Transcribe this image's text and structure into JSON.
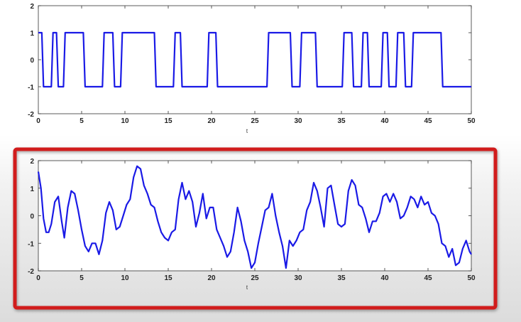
{
  "chart_data": [
    {
      "type": "line",
      "title": "",
      "xlabel": "t",
      "ylabel": "",
      "xlim": [
        0,
        50
      ],
      "ylim": [
        -2,
        2
      ],
      "xticks": [
        0,
        5,
        10,
        15,
        20,
        25,
        30,
        35,
        40,
        45,
        50
      ],
      "yticks": [
        2,
        1,
        0,
        -1,
        -2
      ],
      "grid": false,
      "series": [
        {
          "color": "#1a1ae6",
          "x": [
            0,
            0.3,
            0.4,
            0.6,
            0.8,
            1.5,
            1.7,
            2.1,
            2.3,
            2.9,
            3.1,
            5.2,
            5.4,
            7.4,
            7.6,
            8.6,
            8.8,
            9.5,
            9.7,
            13.4,
            13.6,
            15.6,
            15.8,
            16.4,
            16.6,
            19.5,
            19.7,
            20.5,
            20.7,
            26.4,
            26.6,
            29.1,
            29.3,
            30.2,
            30.4,
            32.0,
            32.2,
            35.1,
            35.3,
            36.2,
            36.4,
            37.3,
            37.5,
            38.0,
            38.2,
            39.6,
            39.8,
            40.3,
            40.5,
            41.3,
            41.5,
            42.2,
            42.4,
            43.1,
            43.3,
            46.5,
            46.7,
            50
          ],
          "y": [
            1,
            1,
            1,
            -1,
            -1,
            -1,
            1,
            1,
            -1,
            -1,
            1,
            1,
            -1,
            -1,
            1,
            1,
            -1,
            -1,
            1,
            1,
            -1,
            -1,
            1,
            1,
            -1,
            -1,
            1,
            1,
            -1,
            -1,
            1,
            1,
            -1,
            -1,
            1,
            1,
            -1,
            -1,
            1,
            1,
            -1,
            -1,
            1,
            1,
            -1,
            -1,
            1,
            1,
            -1,
            -1,
            1,
            1,
            -1,
            -1,
            1,
            1,
            -1,
            -1
          ]
        }
      ]
    },
    {
      "type": "line",
      "title": "",
      "xlabel": "t",
      "ylabel": "",
      "xlim": [
        0,
        50
      ],
      "ylim": [
        -2,
        2
      ],
      "xticks": [
        0,
        5,
        10,
        15,
        20,
        25,
        30,
        35,
        40,
        45,
        50
      ],
      "yticks": [
        2,
        1,
        0,
        -1,
        -2
      ],
      "grid": false,
      "series": [
        {
          "color": "#1a1ae6",
          "x": [
            0,
            0.3,
            0.6,
            0.9,
            1.2,
            1.5,
            1.9,
            2.3,
            2.7,
            3.0,
            3.4,
            3.8,
            4.2,
            4.6,
            5.0,
            5.4,
            5.8,
            6.2,
            6.6,
            7.0,
            7.4,
            7.8,
            8.2,
            8.6,
            9.0,
            9.4,
            9.8,
            10.2,
            10.6,
            11.0,
            11.4,
            11.8,
            12.2,
            12.6,
            13.0,
            13.4,
            13.8,
            14.2,
            14.6,
            15.0,
            15.4,
            15.8,
            16.2,
            16.6,
            17.0,
            17.4,
            17.8,
            18.2,
            18.6,
            19.0,
            19.4,
            19.8,
            20.2,
            20.6,
            21.0,
            21.4,
            21.8,
            22.2,
            22.6,
            23.0,
            23.4,
            23.8,
            24.2,
            24.6,
            25.0,
            25.4,
            25.8,
            26.2,
            26.6,
            27.0,
            27.4,
            27.8,
            28.2,
            28.6,
            29.0,
            29.4,
            29.8,
            30.2,
            30.6,
            31.0,
            31.4,
            31.8,
            32.2,
            32.6,
            33.0,
            33.4,
            33.8,
            34.2,
            34.6,
            35.0,
            35.4,
            35.8,
            36.2,
            36.6,
            37.0,
            37.4,
            37.8,
            38.2,
            38.6,
            39.0,
            39.4,
            39.8,
            40.2,
            40.6,
            41.0,
            41.4,
            41.8,
            42.2,
            42.6,
            43.0,
            43.4,
            43.8,
            44.2,
            44.6,
            45.0,
            45.4,
            45.8,
            46.2,
            46.6,
            47.0,
            47.4,
            47.8,
            48.2,
            48.6,
            49.0,
            49.4,
            49.8,
            50.0
          ],
          "y": [
            1.6,
            1.0,
            -0.1,
            -0.6,
            -0.6,
            -0.3,
            0.5,
            0.7,
            -0.2,
            -0.8,
            0.3,
            0.9,
            0.8,
            0.2,
            -0.5,
            -1.1,
            -1.3,
            -1.0,
            -1.0,
            -1.4,
            -0.9,
            0.1,
            0.5,
            0.2,
            -0.5,
            -0.4,
            0.0,
            0.4,
            0.6,
            1.4,
            1.8,
            1.7,
            1.1,
            0.8,
            0.4,
            0.3,
            -0.2,
            -0.6,
            -0.8,
            -0.9,
            -0.6,
            -0.5,
            0.6,
            1.2,
            0.6,
            0.9,
            0.5,
            -0.4,
            0.1,
            0.8,
            -0.1,
            0.3,
            0.3,
            -0.5,
            -0.8,
            -1.1,
            -1.5,
            -1.3,
            -0.6,
            0.3,
            -0.2,
            -0.9,
            -1.3,
            -1.9,
            -1.7,
            -1.0,
            -0.4,
            0.2,
            0.3,
            0.8,
            0.0,
            -0.6,
            -1.1,
            -1.9,
            -0.9,
            -1.1,
            -0.9,
            -0.6,
            -0.5,
            0.2,
            0.5,
            1.2,
            0.9,
            0.3,
            -0.4,
            1.0,
            1.1,
            0.4,
            -0.3,
            -0.4,
            -0.3,
            0.9,
            1.3,
            1.1,
            0.4,
            0.3,
            -0.1,
            -0.6,
            -0.2,
            -0.2,
            0.1,
            0.7,
            0.8,
            0.5,
            0.8,
            0.5,
            -0.1,
            0.0,
            0.3,
            0.7,
            0.6,
            0.3,
            0.7,
            0.4,
            0.5,
            0.1,
            0.0,
            -0.3,
            -1.0,
            -1.1,
            -1.5,
            -1.2,
            -1.8,
            -1.7,
            -1.2,
            -0.9,
            -1.3,
            -1.4
          ]
        }
      ]
    }
  ],
  "highlight": {
    "color": "#d11a1a"
  },
  "axes_color": "#333333"
}
